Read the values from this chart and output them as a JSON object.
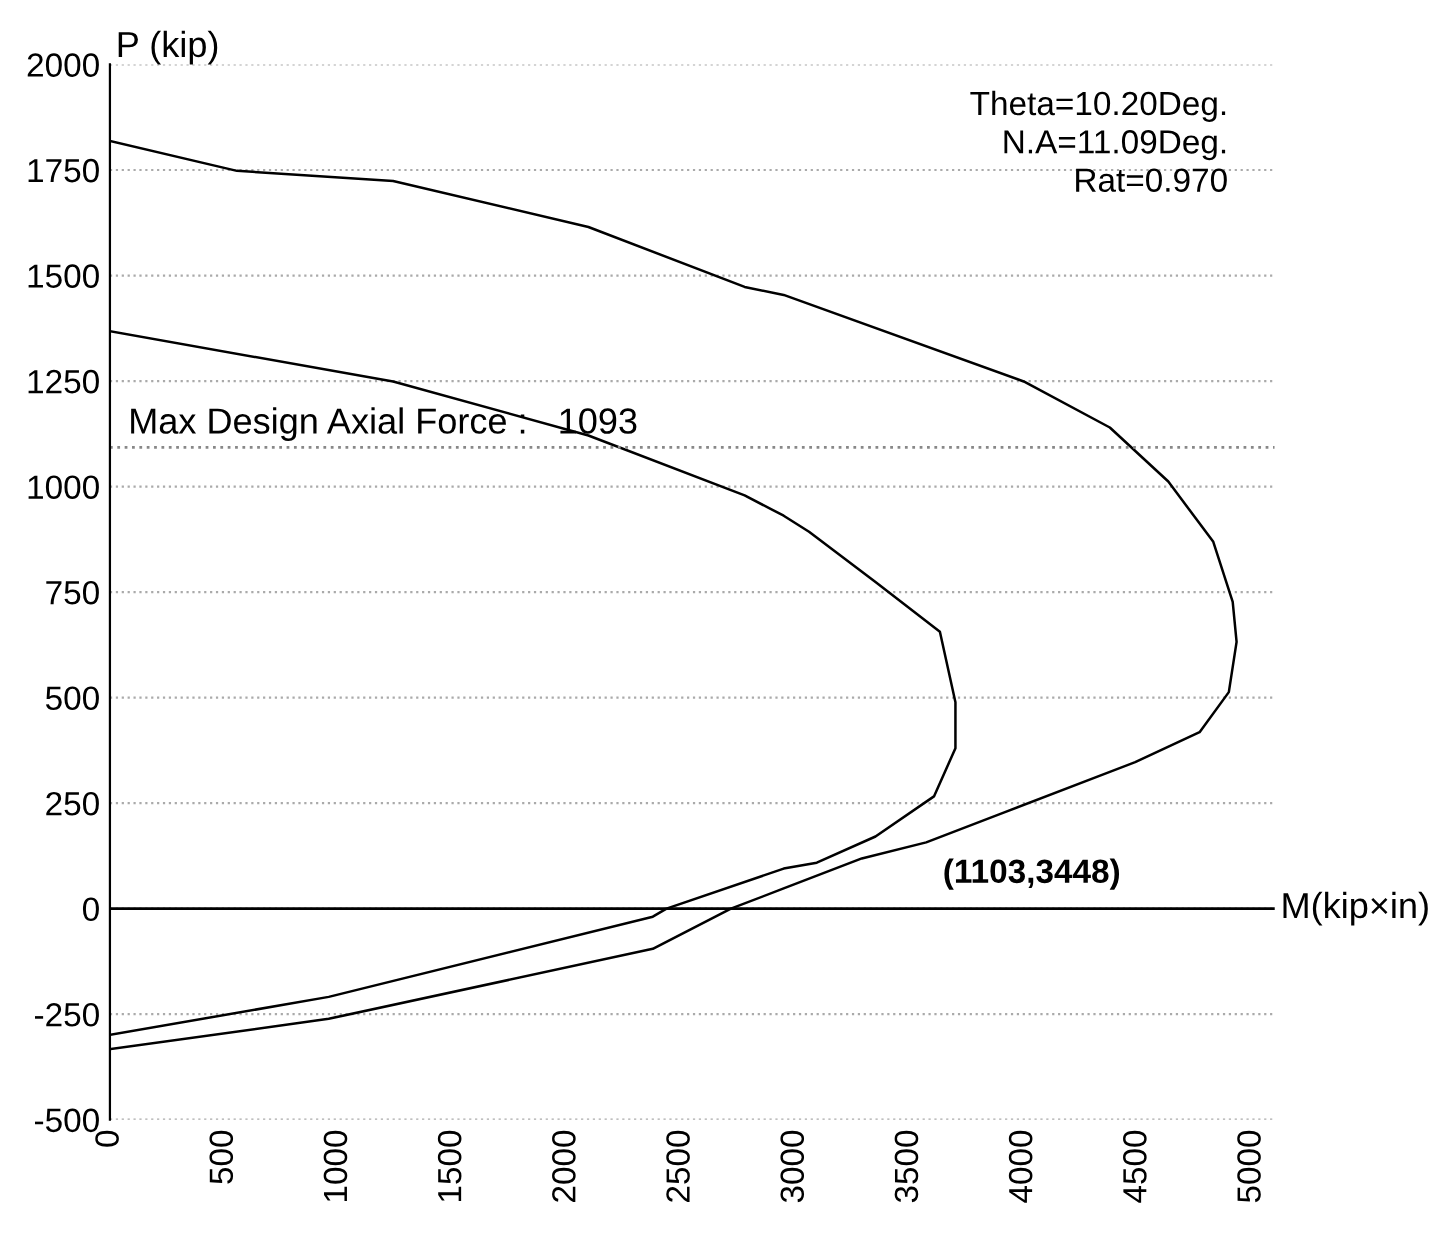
{
  "chart_data": {
    "type": "line",
    "ylabel": "P (kip)",
    "xlabel": "M(kip×in)",
    "xlim": [
      0,
      5100
    ],
    "ylim": [
      -500,
      2000
    ],
    "xticks": [
      0,
      500,
      1000,
      1500,
      2000,
      2500,
      3000,
      3500,
      4000,
      4500,
      5000
    ],
    "yticks": [
      -500,
      -250,
      0,
      250,
      500,
      750,
      1000,
      1250,
      1500,
      1750,
      2000
    ],
    "grid": "y",
    "marker": "none",
    "line_style": "solid",
    "series": [
      {
        "color": "#000000",
        "x": [
          0,
          556,
          1240,
          2095,
          2779,
          2950,
          4001,
          4378,
          4634,
          4831,
          4916,
          4933,
          4899,
          4771,
          4489,
          3916,
          3574,
          3292,
          2950,
          2719,
          2377,
          958,
          0
        ],
        "values": [
          1819,
          1748,
          1724,
          1615,
          1473,
          1454,
          1249,
          1140,
          1012,
          869,
          727,
          632,
          513,
          418,
          347,
          228,
          157,
          119,
          48,
          0,
          -95,
          -261,
          -333
        ]
      },
      {
        "color": "#000000",
        "x": [
          0,
          1240,
          2095,
          2779,
          2950,
          3061,
          3352,
          3634,
          3702,
          3702,
          3608,
          3352,
          3095,
          2950,
          2437,
          2377,
          958,
          0
        ],
        "values": [
          1368,
          1249,
          1121,
          979,
          931,
          893,
          774,
          656,
          489,
          380,
          266,
          171,
          109,
          95,
          0,
          -19,
          -209,
          -299
        ]
      }
    ],
    "ref_lines": [
      {
        "axis": "y",
        "value": 1093,
        "label": "Max Design Axial Force :   1093",
        "line_style": "dotted",
        "color": "#888888"
      },
      {
        "axis": "y",
        "value": 0,
        "color": "#000000",
        "line_style": "solid"
      }
    ],
    "annotations": [
      "Theta=10.20Deg.\nN.A=11.09Deg.\nRat=0.970",
      "(1103,3448)"
    ]
  }
}
